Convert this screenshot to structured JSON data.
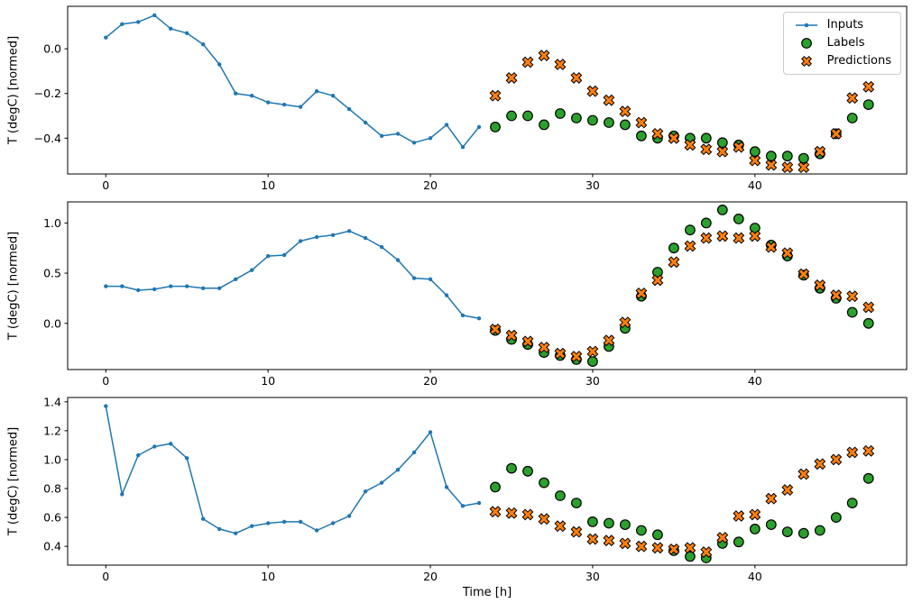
{
  "figure": {
    "background": "#ffffff",
    "xlabel": "Time [h]",
    "ylabel": "T (degC) [normed]",
    "legend": {
      "position": "upper right",
      "items": [
        {
          "label": "Inputs",
          "marker": "line-dot",
          "color": "#1f77b4"
        },
        {
          "label": "Labels",
          "marker": "circle",
          "color": "#2ca02c"
        },
        {
          "label": "Predictions",
          "marker": "X",
          "color": "#ff7f0e"
        }
      ]
    },
    "colors": {
      "inputs": "#1f77b4",
      "labels": "#2ca02c",
      "predictions": "#ff7f0e",
      "marker_edge": "#000000",
      "axes_edge": "#000000"
    }
  },
  "chart_data": [
    {
      "type": "line",
      "title": "",
      "xlabel": "",
      "ylabel": "T (degC) [normed]",
      "xlim": [
        -2.35,
        49.35
      ],
      "ylim": [
        -0.56,
        0.19
      ],
      "xticks": [
        0,
        10,
        20,
        30,
        40
      ],
      "yticks": [
        0.0,
        -0.2,
        -0.4
      ],
      "grid": false,
      "series": [
        {
          "name": "Inputs",
          "type": "line",
          "color": "#1f77b4",
          "x": [
            0,
            1,
            2,
            3,
            4,
            5,
            6,
            7,
            8,
            9,
            10,
            11,
            12,
            13,
            14,
            15,
            16,
            17,
            18,
            19,
            20,
            21,
            22,
            23
          ],
          "y": [
            0.05,
            0.11,
            0.12,
            0.15,
            0.09,
            0.07,
            0.02,
            -0.07,
            -0.2,
            -0.21,
            -0.24,
            -0.25,
            -0.26,
            -0.19,
            -0.21,
            -0.27,
            -0.33,
            -0.39,
            -0.38,
            -0.42,
            -0.4,
            -0.34,
            -0.44,
            -0.35
          ]
        },
        {
          "name": "Labels",
          "type": "scatter-circle",
          "color": "#2ca02c",
          "x": [
            24,
            25,
            26,
            27,
            28,
            29,
            30,
            31,
            32,
            33,
            34,
            35,
            36,
            37,
            38,
            39,
            40,
            41,
            42,
            43,
            44,
            45,
            46,
            47
          ],
          "y": [
            -0.35,
            -0.3,
            -0.3,
            -0.34,
            -0.29,
            -0.31,
            -0.32,
            -0.33,
            -0.34,
            -0.39,
            -0.4,
            -0.39,
            -0.4,
            -0.4,
            -0.42,
            -0.43,
            -0.46,
            -0.48,
            -0.48,
            -0.49,
            -0.47,
            -0.38,
            -0.31,
            -0.25
          ]
        },
        {
          "name": "Predictions",
          "type": "scatter-x",
          "color": "#ff7f0e",
          "x": [
            24,
            25,
            26,
            27,
            28,
            29,
            30,
            31,
            32,
            33,
            34,
            35,
            36,
            37,
            38,
            39,
            40,
            41,
            42,
            43,
            44,
            45,
            46,
            47
          ],
          "y": [
            -0.21,
            -0.13,
            -0.06,
            -0.03,
            -0.07,
            -0.13,
            -0.19,
            -0.23,
            -0.28,
            -0.33,
            -0.38,
            -0.4,
            -0.43,
            -0.45,
            -0.46,
            -0.44,
            -0.5,
            -0.52,
            -0.53,
            -0.53,
            -0.46,
            -0.38,
            -0.22,
            -0.17
          ]
        }
      ]
    },
    {
      "type": "line",
      "title": "",
      "xlabel": "",
      "ylabel": "T (degC) [normed]",
      "xlim": [
        -2.35,
        49.35
      ],
      "ylim": [
        -0.46,
        1.21
      ],
      "xticks": [
        0,
        10,
        20,
        30,
        40
      ],
      "yticks": [
        0.0,
        0.5,
        1.0
      ],
      "grid": false,
      "series": [
        {
          "name": "Inputs",
          "type": "line",
          "color": "#1f77b4",
          "x": [
            0,
            1,
            2,
            3,
            4,
            5,
            6,
            7,
            8,
            9,
            10,
            11,
            12,
            13,
            14,
            15,
            16,
            17,
            18,
            19,
            20,
            21,
            22,
            23
          ],
          "y": [
            0.37,
            0.37,
            0.33,
            0.34,
            0.37,
            0.37,
            0.35,
            0.35,
            0.44,
            0.53,
            0.67,
            0.68,
            0.82,
            0.86,
            0.88,
            0.92,
            0.85,
            0.76,
            0.63,
            0.45,
            0.44,
            0.28,
            0.08,
            0.05
          ]
        },
        {
          "name": "Labels",
          "type": "scatter-circle",
          "color": "#2ca02c",
          "x": [
            24,
            25,
            26,
            27,
            28,
            29,
            30,
            31,
            32,
            33,
            34,
            35,
            36,
            37,
            38,
            39,
            40,
            41,
            42,
            43,
            44,
            45,
            46,
            47
          ],
          "y": [
            -0.07,
            -0.16,
            -0.21,
            -0.29,
            -0.32,
            -0.36,
            -0.38,
            -0.23,
            -0.05,
            0.27,
            0.51,
            0.75,
            0.93,
            1.0,
            1.13,
            1.04,
            0.95,
            0.78,
            0.67,
            0.48,
            0.35,
            0.25,
            0.11,
            0.0
          ]
        },
        {
          "name": "Predictions",
          "type": "scatter-x",
          "color": "#ff7f0e",
          "x": [
            24,
            25,
            26,
            27,
            28,
            29,
            30,
            31,
            32,
            33,
            34,
            35,
            36,
            37,
            38,
            39,
            40,
            41,
            42,
            43,
            44,
            45,
            46,
            47
          ],
          "y": [
            -0.06,
            -0.12,
            -0.18,
            -0.24,
            -0.3,
            -0.33,
            -0.28,
            -0.17,
            0.01,
            0.3,
            0.43,
            0.61,
            0.77,
            0.85,
            0.87,
            0.85,
            0.87,
            0.76,
            0.7,
            0.49,
            0.38,
            0.28,
            0.27,
            0.16
          ]
        }
      ]
    },
    {
      "type": "line",
      "title": "",
      "xlabel": "Time [h]",
      "ylabel": "T (degC) [normed]",
      "xlim": [
        -2.35,
        49.35
      ],
      "ylim": [
        0.27,
        1.43
      ],
      "xticks": [
        0,
        10,
        20,
        30,
        40
      ],
      "yticks": [
        0.4,
        0.6,
        0.8,
        1.0,
        1.2,
        1.4
      ],
      "grid": false,
      "series": [
        {
          "name": "Inputs",
          "type": "line",
          "color": "#1f77b4",
          "x": [
            0,
            1,
            2,
            3,
            4,
            5,
            6,
            7,
            8,
            9,
            10,
            11,
            12,
            13,
            14,
            15,
            16,
            17,
            18,
            19,
            20,
            21,
            22,
            23
          ],
          "y": [
            1.37,
            0.76,
            1.03,
            1.09,
            1.11,
            1.01,
            0.59,
            0.52,
            0.49,
            0.54,
            0.56,
            0.57,
            0.57,
            0.51,
            0.56,
            0.61,
            0.78,
            0.84,
            0.93,
            1.05,
            1.19,
            0.81,
            0.68,
            0.7
          ]
        },
        {
          "name": "Labels",
          "type": "scatter-circle",
          "color": "#2ca02c",
          "x": [
            24,
            25,
            26,
            27,
            28,
            29,
            30,
            31,
            32,
            33,
            34,
            35,
            36,
            37,
            38,
            39,
            40,
            41,
            42,
            43,
            44,
            45,
            46,
            47
          ],
          "y": [
            0.81,
            0.94,
            0.92,
            0.84,
            0.75,
            0.7,
            0.57,
            0.56,
            0.55,
            0.51,
            0.48,
            0.37,
            0.33,
            0.32,
            0.42,
            0.43,
            0.52,
            0.55,
            0.5,
            0.49,
            0.51,
            0.6,
            0.7,
            0.87
          ]
        },
        {
          "name": "Predictions",
          "type": "scatter-x",
          "color": "#ff7f0e",
          "x": [
            24,
            25,
            26,
            27,
            28,
            29,
            30,
            31,
            32,
            33,
            34,
            35,
            36,
            37,
            38,
            39,
            40,
            41,
            42,
            43,
            44,
            45,
            46,
            47
          ],
          "y": [
            0.64,
            0.63,
            0.62,
            0.59,
            0.54,
            0.5,
            0.45,
            0.44,
            0.42,
            0.4,
            0.39,
            0.38,
            0.39,
            0.36,
            0.46,
            0.61,
            0.62,
            0.73,
            0.79,
            0.9,
            0.97,
            1.0,
            1.05,
            1.06
          ]
        }
      ]
    }
  ]
}
